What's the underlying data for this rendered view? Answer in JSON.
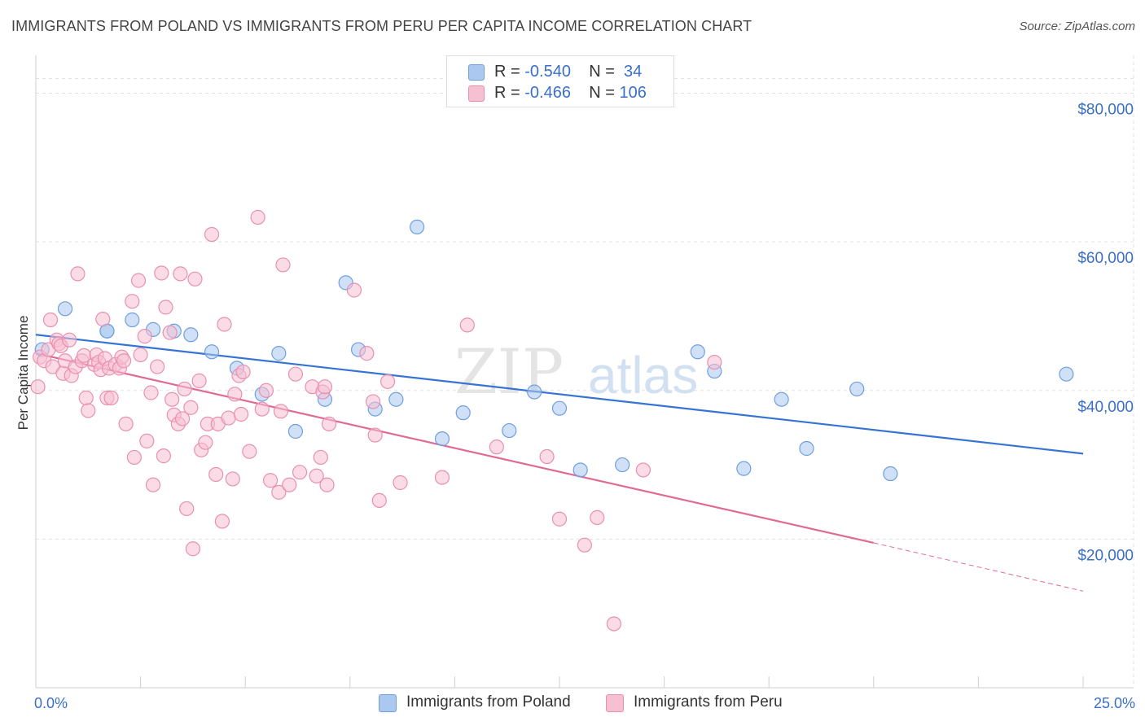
{
  "title": "IMMIGRANTS FROM POLAND VS IMMIGRANTS FROM PERU PER CAPITA INCOME CORRELATION CHART",
  "source": "Source: ZipAtlas.com",
  "watermark": {
    "zip": "ZIP",
    "atlas": "atlas"
  },
  "legend": {
    "rows": [
      {
        "r_label": "R =",
        "r_value": "-0.540",
        "n_label": "N =",
        "n_value": "34",
        "color": "#aac8f0",
        "border": "#6f9fe0"
      },
      {
        "r_label": "R =",
        "r_value": "-0.466",
        "n_label": "N =",
        "n_value": "106",
        "color": "#f7bfd2",
        "border": "#e890b0"
      }
    ]
  },
  "bottom_legend": [
    {
      "label": "Immigrants from Poland",
      "color": "#aac8f0",
      "border": "#6f9fe0"
    },
    {
      "label": "Immigrants from Peru",
      "color": "#f7bfd2",
      "border": "#e890b0"
    }
  ],
  "chart_data": {
    "type": "scatter",
    "ylabel": "Per Capita Income",
    "xlabel": "",
    "xlim": [
      0,
      25
    ],
    "ylim": [
      0,
      84000
    ],
    "x_tick_labels": [
      {
        "value": 0,
        "label": "0.0%"
      },
      {
        "value": 25,
        "label": "25.0%"
      }
    ],
    "y_tick_labels": [
      {
        "value": 20000,
        "label": "$20,000"
      },
      {
        "value": 40000,
        "label": "$40,000"
      },
      {
        "value": 60000,
        "label": "$60,000"
      },
      {
        "value": 80000,
        "label": "$80,000"
      }
    ],
    "grid": true,
    "series": [
      {
        "name": "Immigrants from Poland",
        "color": "#aac8f0",
        "stroke": "#6f9fe0",
        "trend_color": "#3574d4",
        "trend": {
          "x0": 0,
          "y0": 47500,
          "x1": 25,
          "y1": 31500
        },
        "points": [
          [
            0.15,
            45500
          ],
          [
            0.7,
            51000
          ],
          [
            1.7,
            48000
          ],
          [
            1.7,
            48000
          ],
          [
            2.3,
            49500
          ],
          [
            2.8,
            48200
          ],
          [
            3.3,
            48000
          ],
          [
            3.7,
            47500
          ],
          [
            4.2,
            45200
          ],
          [
            4.8,
            43000
          ],
          [
            5.4,
            39500
          ],
          [
            5.8,
            45000
          ],
          [
            6.2,
            34500
          ],
          [
            6.9,
            38800
          ],
          [
            7.4,
            54500
          ],
          [
            7.7,
            45500
          ],
          [
            8.1,
            37500
          ],
          [
            8.6,
            38800
          ],
          [
            9.1,
            62000
          ],
          [
            9.7,
            33500
          ],
          [
            10.2,
            37000
          ],
          [
            11.3,
            34600
          ],
          [
            11.9,
            39800
          ],
          [
            12.5,
            37600
          ],
          [
            13.0,
            29300
          ],
          [
            14.0,
            30000
          ],
          [
            15.8,
            45200
          ],
          [
            16.2,
            42600
          ],
          [
            16.9,
            29500
          ],
          [
            17.8,
            38800
          ],
          [
            18.4,
            32200
          ],
          [
            19.6,
            40200
          ],
          [
            20.4,
            28800
          ],
          [
            24.6,
            42200
          ]
        ]
      },
      {
        "name": "Immigrants from Peru",
        "color": "#f7bfd2",
        "stroke": "#e890b0",
        "trend_color": "#e06a94",
        "trend": {
          "x0": 0,
          "y0": 45000,
          "x1": 20.0,
          "y1": 19500
        },
        "trend_dashed_to": {
          "x": 25,
          "y": 13000
        },
        "points": [
          [
            0.05,
            40500
          ],
          [
            0.1,
            44500
          ],
          [
            0.2,
            44000
          ],
          [
            0.3,
            45500
          ],
          [
            0.35,
            49500
          ],
          [
            0.4,
            43200
          ],
          [
            0.5,
            46800
          ],
          [
            0.55,
            46300
          ],
          [
            0.6,
            46000
          ],
          [
            0.65,
            42300
          ],
          [
            0.7,
            44000
          ],
          [
            0.8,
            46800
          ],
          [
            0.85,
            42000
          ],
          [
            0.95,
            43200
          ],
          [
            1.0,
            55700
          ],
          [
            1.1,
            44000
          ],
          [
            1.15,
            44700
          ],
          [
            1.2,
            39000
          ],
          [
            1.25,
            37300
          ],
          [
            1.4,
            43500
          ],
          [
            1.45,
            44800
          ],
          [
            1.5,
            43800
          ],
          [
            1.55,
            42800
          ],
          [
            1.6,
            49600
          ],
          [
            1.65,
            44300
          ],
          [
            1.7,
            39000
          ],
          [
            1.75,
            43000
          ],
          [
            1.8,
            39000
          ],
          [
            1.9,
            43500
          ],
          [
            2.0,
            43000
          ],
          [
            2.05,
            44500
          ],
          [
            2.1,
            44000
          ],
          [
            2.15,
            35500
          ],
          [
            2.3,
            52000
          ],
          [
            2.35,
            31000
          ],
          [
            2.45,
            54800
          ],
          [
            2.5,
            44800
          ],
          [
            2.6,
            47300
          ],
          [
            2.65,
            33200
          ],
          [
            2.75,
            39700
          ],
          [
            2.8,
            27300
          ],
          [
            2.9,
            43200
          ],
          [
            3.0,
            55800
          ],
          [
            3.05,
            31200
          ],
          [
            3.1,
            51200
          ],
          [
            3.2,
            47800
          ],
          [
            3.25,
            38800
          ],
          [
            3.3,
            36700
          ],
          [
            3.4,
            35500
          ],
          [
            3.45,
            55700
          ],
          [
            3.5,
            36200
          ],
          [
            3.55,
            40200
          ],
          [
            3.6,
            24100
          ],
          [
            3.7,
            37700
          ],
          [
            3.75,
            18700
          ],
          [
            3.8,
            55000
          ],
          [
            3.9,
            41300
          ],
          [
            3.95,
            32000
          ],
          [
            4.05,
            33000
          ],
          [
            4.1,
            35500
          ],
          [
            4.2,
            61000
          ],
          [
            4.3,
            28700
          ],
          [
            4.35,
            35500
          ],
          [
            4.45,
            22400
          ],
          [
            4.5,
            48900
          ],
          [
            4.6,
            36300
          ],
          [
            4.7,
            28100
          ],
          [
            4.75,
            39500
          ],
          [
            4.85,
            42000
          ],
          [
            4.9,
            36800
          ],
          [
            4.95,
            42500
          ],
          [
            5.1,
            31800
          ],
          [
            5.3,
            63300
          ],
          [
            5.4,
            37500
          ],
          [
            5.5,
            40000
          ],
          [
            5.6,
            27900
          ],
          [
            5.8,
            26300
          ],
          [
            5.85,
            37200
          ],
          [
            5.9,
            56900
          ],
          [
            6.05,
            27300
          ],
          [
            6.2,
            42200
          ],
          [
            6.3,
            29000
          ],
          [
            6.6,
            40500
          ],
          [
            6.7,
            28500
          ],
          [
            6.8,
            31000
          ],
          [
            6.85,
            39800
          ],
          [
            6.9,
            40500
          ],
          [
            6.95,
            27300
          ],
          [
            7.0,
            35500
          ],
          [
            7.6,
            53500
          ],
          [
            7.9,
            45000
          ],
          [
            8.05,
            38500
          ],
          [
            8.1,
            34000
          ],
          [
            8.2,
            25200
          ],
          [
            8.4,
            41200
          ],
          [
            8.7,
            27600
          ],
          [
            9.7,
            28300
          ],
          [
            10.3,
            48800
          ],
          [
            11.0,
            32400
          ],
          [
            12.2,
            31100
          ],
          [
            12.5,
            22700
          ],
          [
            13.1,
            19200
          ],
          [
            13.4,
            22900
          ],
          [
            13.8,
            8600
          ],
          [
            14.5,
            29300
          ],
          [
            16.2,
            43800
          ]
        ]
      }
    ]
  }
}
